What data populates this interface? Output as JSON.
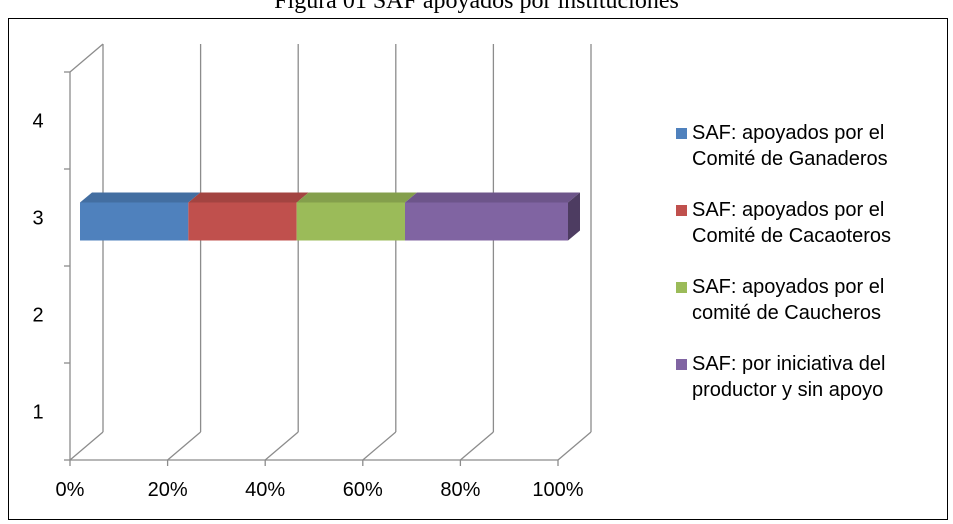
{
  "title": "Figura 01 SAF apoyados por instituciones",
  "chart_data": {
    "type": "bar",
    "orientation": "horizontal",
    "stacked": "percent",
    "three_d": true,
    "categories": [
      "1",
      "2",
      "3",
      "4"
    ],
    "x_ticks": [
      "0%",
      "20%",
      "40%",
      "60%",
      "80%",
      "100%"
    ],
    "xlim": [
      0,
      100
    ],
    "grid": "vertical",
    "legend_position": "right",
    "series": [
      {
        "name": "SAF: apoyados por el Comité de Ganaderos",
        "color": "#4F81BD",
        "values": [
          null,
          null,
          22.2,
          null
        ]
      },
      {
        "name": "SAF: apoyados por el Comité de Cacaoteros",
        "color": "#C0504D",
        "values": [
          null,
          null,
          22.2,
          null
        ]
      },
      {
        "name": "SAF: apoyados por el comité de Caucheros",
        "color": "#9BBB59",
        "values": [
          null,
          null,
          22.2,
          null
        ]
      },
      {
        "name": "SAF: por iniciativa del productor y sin apoyo",
        "color": "#8064A2",
        "values": [
          null,
          null,
          33.4,
          null
        ]
      }
    ]
  },
  "legend": [
    {
      "line1": "SAF: apoyados por el",
      "line2": "Comité de Ganaderos",
      "color": "#4F81BD"
    },
    {
      "line1": "SAF: apoyados por el",
      "line2": "Comité de Cacaoteros",
      "color": "#C0504D"
    },
    {
      "line1": "SAF: apoyados por el",
      "line2": "comité de Caucheros",
      "color": "#9BBB59"
    },
    {
      "line1": "SAF: por iniciativa del",
      "line2": "productor y sin apoyo",
      "color": "#8064A2"
    }
  ]
}
